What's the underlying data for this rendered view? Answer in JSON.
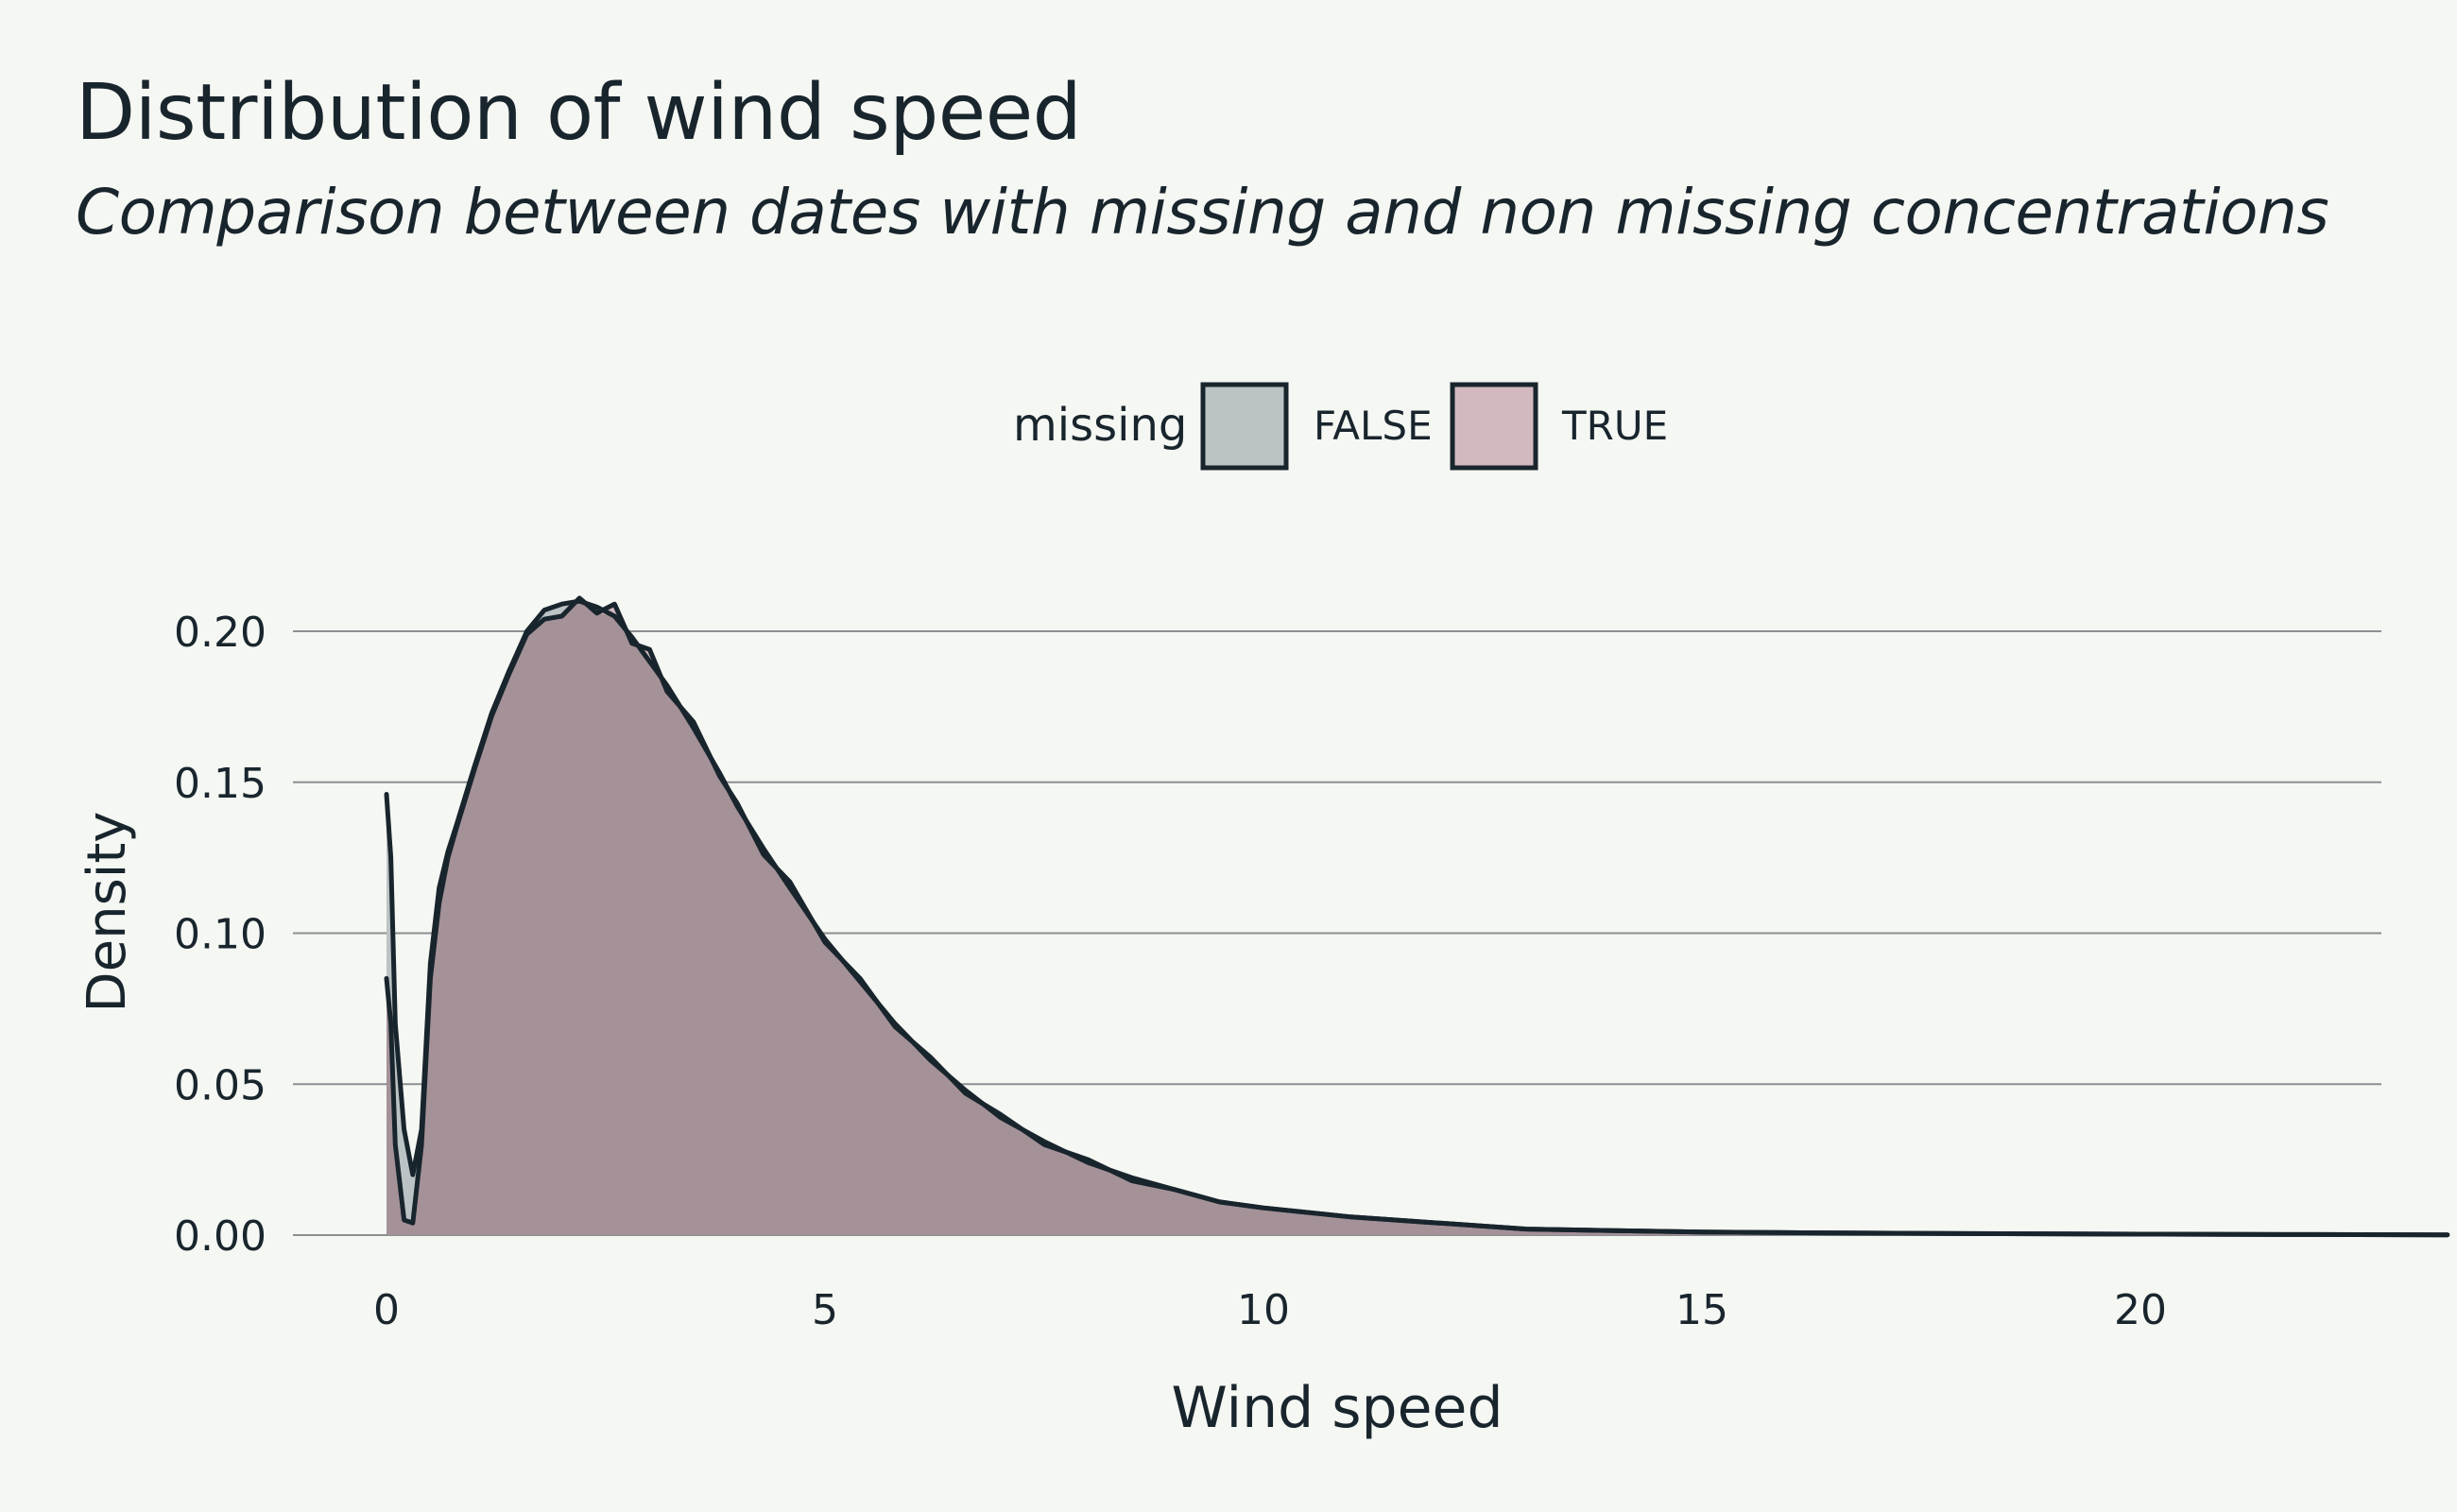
{
  "header": {
    "title": "Distribution of wind speed",
    "subtitle": "Comparison between dates with missing and non missing concentrations"
  },
  "chart_data": {
    "type": "area",
    "title": "Distribution of wind speed",
    "subtitle": "Comparison between dates with missing and non missing concentrations",
    "xlabel": "Wind speed",
    "ylabel": "Density",
    "xlim": [
      0,
      24
    ],
    "ylim": [
      0,
      0.21
    ],
    "x_ticks": [
      0,
      5,
      10,
      15,
      20
    ],
    "x_tick_labels": [
      "0",
      "5",
      "10",
      "15",
      "20"
    ],
    "y_ticks": [
      0,
      0.05,
      0.1,
      0.15,
      0.2
    ],
    "y_tick_labels": [
      "0.00",
      "0.05",
      "0.10",
      "0.15",
      "0.20"
    ],
    "grid": "horizontal",
    "legend": {
      "title": "missing",
      "position": "top",
      "entries": [
        "FALSE",
        "TRUE"
      ]
    },
    "colors": {
      "background": "#f5f7f3",
      "FALSE": "#bcc3c4",
      "TRUE": "#d2b9c0",
      "overlap": "#a49298",
      "line": "#19252d",
      "grid": "#8a8f91"
    },
    "x": [
      0,
      0.05,
      0.1,
      0.2,
      0.3,
      0.4,
      0.5,
      0.6,
      0.7,
      0.8,
      1.0,
      1.2,
      1.4,
      1.6,
      1.8,
      2.0,
      2.2,
      2.4,
      2.6,
      2.8,
      3.0,
      3.2,
      3.5,
      3.8,
      4.0,
      4.3,
      4.6,
      5.0,
      5.4,
      5.8,
      6.2,
      6.6,
      7.0,
      7.5,
      8.0,
      8.5,
      9.0,
      9.5,
      10,
      11,
      12,
      13,
      14,
      15,
      16,
      18,
      20,
      22,
      23.5
    ],
    "series": [
      {
        "name": "FALSE",
        "values": [
          0.146,
          0.125,
          0.07,
          0.035,
          0.02,
          0.035,
          0.09,
          0.115,
          0.127,
          0.136,
          0.155,
          0.173,
          0.187,
          0.2,
          0.207,
          0.209,
          0.21,
          0.208,
          0.205,
          0.198,
          0.19,
          0.182,
          0.168,
          0.153,
          0.142,
          0.128,
          0.115,
          0.098,
          0.084,
          0.07,
          0.058,
          0.048,
          0.039,
          0.031,
          0.024,
          0.019,
          0.015,
          0.011,
          0.009,
          0.006,
          0.004,
          0.002,
          0.0015,
          0.001,
          0.0008,
          0.0005,
          0.0003,
          0.0002,
          0.0001
        ]
      },
      {
        "name": "TRUE",
        "values": [
          0.085,
          0.07,
          0.03,
          0.005,
          0.004,
          0.03,
          0.085,
          0.11,
          0.125,
          0.135,
          0.154,
          0.172,
          0.186,
          0.199,
          0.204,
          0.205,
          0.211,
          0.206,
          0.209,
          0.196,
          0.194,
          0.18,
          0.17,
          0.152,
          0.143,
          0.126,
          0.117,
          0.097,
          0.085,
          0.069,
          0.059,
          0.047,
          0.04,
          0.03,
          0.025,
          0.018,
          0.015,
          0.011,
          0.009,
          0.006,
          0.004,
          0.002,
          0.0015,
          0.001,
          0.0008,
          0.0005,
          0.0003,
          0.0002,
          0.0001
        ]
      }
    ]
  }
}
